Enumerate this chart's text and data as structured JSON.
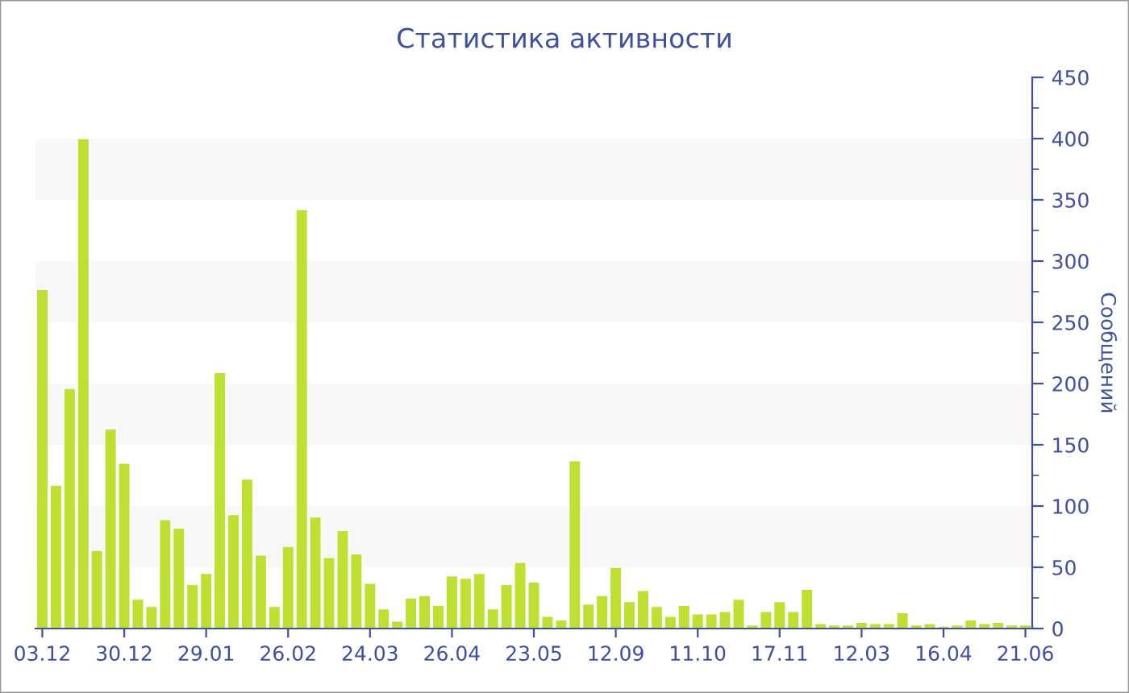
{
  "chart_data": {
    "type": "bar",
    "title": "Статистика активности",
    "ylabel": "Сообщений",
    "categories": [
      "03.12",
      null,
      null,
      null,
      null,
      null,
      "30.12",
      null,
      null,
      null,
      null,
      null,
      "29.01",
      null,
      null,
      null,
      null,
      null,
      "26.02",
      null,
      null,
      null,
      null,
      null,
      "24.03",
      null,
      null,
      null,
      null,
      null,
      "26.04",
      null,
      null,
      null,
      null,
      null,
      "23.05",
      null,
      null,
      null,
      null,
      null,
      "12.09",
      null,
      null,
      null,
      null,
      null,
      "11.10",
      null,
      null,
      null,
      null,
      null,
      "17.11",
      null,
      null,
      null,
      null,
      null,
      "12.03",
      null,
      null,
      null,
      null,
      null,
      "16.04",
      null,
      null,
      null,
      null,
      null,
      "21.06"
    ],
    "values": [
      277,
      117,
      196,
      400,
      64,
      163,
      135,
      24,
      18,
      89,
      82,
      36,
      45,
      209,
      93,
      122,
      60,
      18,
      67,
      342,
      91,
      58,
      80,
      61,
      37,
      16,
      6,
      25,
      27,
      19,
      43,
      41,
      45,
      16,
      36,
      54,
      38,
      10,
      7,
      137,
      20,
      27,
      50,
      22,
      31,
      18,
      10,
      19,
      12,
      12,
      14,
      24,
      3,
      14,
      22,
      14,
      32,
      4,
      3,
      3,
      5,
      4,
      4,
      13,
      3,
      4,
      2,
      3,
      7,
      4,
      5,
      3,
      3
    ],
    "color": "#bde033",
    "ylim": [
      0,
      450
    ],
    "yticks": [
      0,
      50,
      100,
      150,
      200,
      250,
      300,
      350,
      400,
      450
    ],
    "bands": [
      {
        "axis": "y",
        "from": 50,
        "to": 100,
        "color": "#f7f7f7"
      },
      {
        "axis": "y",
        "from": 150,
        "to": 200,
        "color": "#f7f7f7"
      },
      {
        "axis": "y",
        "from": 250,
        "to": 300,
        "color": "#f7f7f7"
      },
      {
        "axis": "y",
        "from": 350,
        "to": 400,
        "color": "#f7f7f7"
      }
    ]
  }
}
